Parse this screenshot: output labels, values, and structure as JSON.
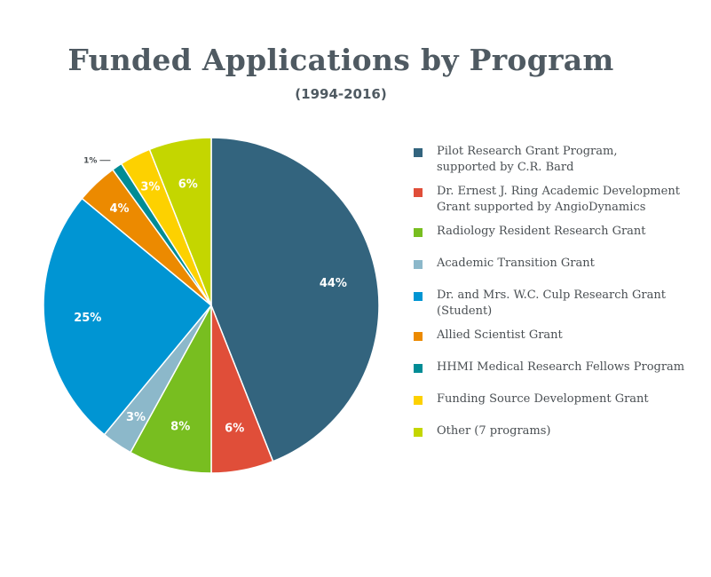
{
  "title": "Funded Applications by Program",
  "subtitle": "(1994-2016)",
  "chart_data": {
    "type": "pie",
    "title": "Funded Applications by Program",
    "subtitle": "(1994-2016)",
    "legend_position": "right",
    "slices": [
      {
        "name": "Pilot Research Grant Program, supported by C.R. Bard",
        "value": 44,
        "label": "44%",
        "color": "#33647e",
        "label_color": "#ffffff"
      },
      {
        "name": "Dr. Ernest J. Ring Academic Development Grant supported by AngioDynamics",
        "value": 6,
        "label": "6%",
        "color": "#e04e39",
        "label_color": "#ffffff"
      },
      {
        "name": "Radiology Resident Research Grant",
        "value": 8,
        "label": "8%",
        "color": "#78be20",
        "label_color": "#ffffff"
      },
      {
        "name": "Academic Transition Grant",
        "value": 3,
        "label": "3%",
        "color": "#8cb8ca",
        "label_color": "#ffffff"
      },
      {
        "name": "Dr. and Mrs. W.C. Culp Research Grant (Student)",
        "value": 25,
        "label": "25%",
        "color": "#0095d3",
        "label_color": "#ffffff"
      },
      {
        "name": "Allied Scientist Grant",
        "value": 4,
        "label": "4%",
        "color": "#ec8a00",
        "label_color": "#ffffff"
      },
      {
        "name": "HHMI Medical Research Fellows Program",
        "value": 1,
        "label": "1%",
        "color": "#008c95",
        "label_color": "#4a4f53"
      },
      {
        "name": "Funding Source Development Grant",
        "value": 3,
        "label": "3%",
        "color": "#fdd100",
        "label_color": "#ffffff"
      },
      {
        "name": "Other (7 programs)",
        "value": 6,
        "label": "6%",
        "color": "#c4d600",
        "label_color": "#ffffff"
      }
    ]
  },
  "legend": {
    "items": [
      {
        "lines": [
          "Pilot Research Grant Program,",
          "supported by C.R. Bard"
        ],
        "color": "#33647e"
      },
      {
        "lines": [
          "Dr. Ernest J. Ring Academic Development",
          "Grant supported by AngioDynamics"
        ],
        "color": "#e04e39"
      },
      {
        "lines": [
          "Radiology Resident Research Grant"
        ],
        "color": "#78be20"
      },
      {
        "lines": [
          "Academic Transition Grant"
        ],
        "color": "#8cb8ca"
      },
      {
        "lines": [
          "Dr. and Mrs. W.C. Culp Research Grant",
          "(Student)"
        ],
        "color": "#0095d3"
      },
      {
        "lines": [
          "Allied Scientist Grant"
        ],
        "color": "#ec8a00"
      },
      {
        "lines": [
          "HHMI Medical Research Fellows Program"
        ],
        "color": "#008c95"
      },
      {
        "lines": [
          "Funding Source Development Grant"
        ],
        "color": "#fdd100"
      },
      {
        "lines": [
          "Other (7 programs)"
        ],
        "color": "#c4d600"
      }
    ]
  }
}
